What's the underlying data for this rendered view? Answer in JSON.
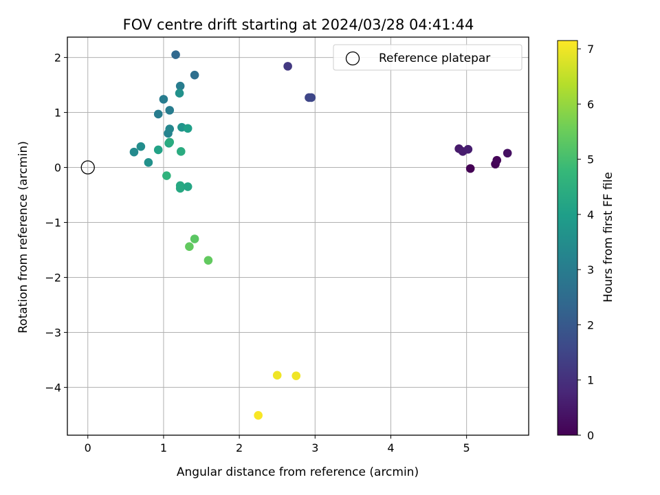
{
  "chart_data": {
    "type": "scatter",
    "title": "FOV centre drift starting at 2024/03/28 04:41:44",
    "xlabel": "Angular distance from reference (arcmin)",
    "ylabel": "Rotation from reference (arcmin)",
    "xlim": [
      -0.27,
      5.82
    ],
    "ylim": [
      -4.87,
      2.37
    ],
    "xticks": [
      0,
      1,
      2,
      3,
      4,
      5
    ],
    "yticks": [
      -4,
      -3,
      -2,
      -1,
      0,
      1,
      2
    ],
    "xtick_labels": [
      "0",
      "1",
      "2",
      "3",
      "4",
      "5"
    ],
    "ytick_labels": [
      "−4",
      "−3",
      "−2",
      "−1",
      "0",
      "1",
      "2"
    ],
    "grid": true,
    "legend": {
      "position": "top-right",
      "entries": [
        {
          "label": "Reference platepar",
          "marker": "open-circle",
          "x": 0,
          "y": 0
        }
      ]
    },
    "colorbar": {
      "label": "Hours from first FF file",
      "range": [
        0,
        7.15
      ],
      "ticks": [
        0,
        1,
        2,
        3,
        4,
        5,
        6,
        7
      ],
      "tick_labels": [
        "0",
        "1",
        "2",
        "3",
        "4",
        "5",
        "6",
        "7"
      ],
      "colormap": [
        "#440154",
        "#482878",
        "#3e4989",
        "#31688e",
        "#26828e",
        "#1f9e89",
        "#35b779",
        "#6ece58",
        "#b5de2b",
        "#fde725"
      ]
    },
    "points": [
      {
        "x": 5.05,
        "y": -0.02,
        "c": 0.0
      },
      {
        "x": 5.38,
        "y": 0.06,
        "c": 0.05
      },
      {
        "x": 5.4,
        "y": 0.13,
        "c": 0.1
      },
      {
        "x": 5.54,
        "y": 0.26,
        "c": 0.3
      },
      {
        "x": 4.9,
        "y": 0.34,
        "c": 0.5
      },
      {
        "x": 4.95,
        "y": 0.29,
        "c": 0.55
      },
      {
        "x": 5.02,
        "y": 0.33,
        "c": 0.6
      },
      {
        "x": 2.64,
        "y": 1.84,
        "c": 1.2
      },
      {
        "x": 2.92,
        "y": 1.27,
        "c": 1.5
      },
      {
        "x": 2.95,
        "y": 1.27,
        "c": 1.55
      },
      {
        "x": 1.16,
        "y": 2.05,
        "c": 2.4
      },
      {
        "x": 1.41,
        "y": 1.68,
        "c": 2.6
      },
      {
        "x": 1.22,
        "y": 1.48,
        "c": 3.0
      },
      {
        "x": 1.0,
        "y": 1.24,
        "c": 3.0
      },
      {
        "x": 0.93,
        "y": 0.97,
        "c": 3.0
      },
      {
        "x": 1.08,
        "y": 1.04,
        "c": 3.0
      },
      {
        "x": 1.21,
        "y": 1.35,
        "c": 3.6
      },
      {
        "x": 1.06,
        "y": 0.62,
        "c": 3.2
      },
      {
        "x": 1.08,
        "y": 0.7,
        "c": 3.3
      },
      {
        "x": 0.61,
        "y": 0.28,
        "c": 3.4
      },
      {
        "x": 0.7,
        "y": 0.38,
        "c": 3.5
      },
      {
        "x": 0.8,
        "y": 0.09,
        "c": 3.6
      },
      {
        "x": 1.24,
        "y": 0.73,
        "c": 3.7
      },
      {
        "x": 1.32,
        "y": 0.71,
        "c": 4.0
      },
      {
        "x": 0.93,
        "y": 0.32,
        "c": 4.1
      },
      {
        "x": 1.07,
        "y": 0.44,
        "c": 4.2
      },
      {
        "x": 1.08,
        "y": 0.46,
        "c": 4.4
      },
      {
        "x": 1.23,
        "y": 0.29,
        "c": 4.4
      },
      {
        "x": 1.04,
        "y": -0.15,
        "c": 4.6
      },
      {
        "x": 1.22,
        "y": -0.33,
        "c": 4.3
      },
      {
        "x": 1.22,
        "y": -0.38,
        "c": 4.3
      },
      {
        "x": 1.32,
        "y": -0.35,
        "c": 4.2
      },
      {
        "x": 1.41,
        "y": -1.3,
        "c": 5.3
      },
      {
        "x": 1.34,
        "y": -1.44,
        "c": 5.4
      },
      {
        "x": 1.59,
        "y": -1.69,
        "c": 5.4
      },
      {
        "x": 2.25,
        "y": -4.51,
        "c": 7.1
      },
      {
        "x": 2.5,
        "y": -3.78,
        "c": 7.0
      },
      {
        "x": 2.75,
        "y": -3.79,
        "c": 7.0
      }
    ]
  }
}
